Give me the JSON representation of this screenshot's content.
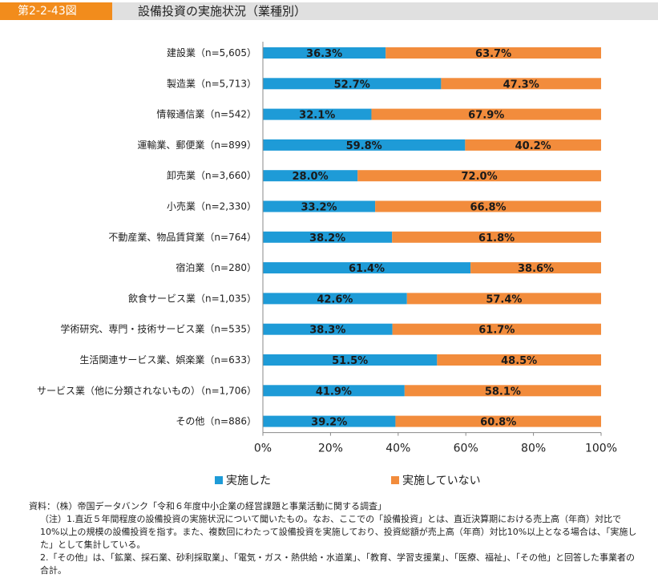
{
  "figure": {
    "label": "第2-2-43図",
    "title": "設備投資の実施状況（業種別）"
  },
  "chart_data": {
    "type": "bar",
    "orientation": "horizontal",
    "stacked": true,
    "categories": [
      "建設業（n=5,605）",
      "製造業（n=5,713）",
      "情報通信業（n=542）",
      "運輸業、郵便業（n=899）",
      "卸売業（n=3,660）",
      "小売業（n=2,330）",
      "不動産業、物品賃貸業（n=764）",
      "宿泊業（n=280）",
      "飲食サービス業（n=1,035）",
      "学術研究、専門・技術サービス業（n=535）",
      "生活関連サービス業、娯楽業（n=633）",
      "サービス業（他に分類されないもの）（n=1,706）",
      "その他（n=886）"
    ],
    "series": [
      {
        "name": "実施した",
        "color": "#1e9bd7",
        "values": [
          36.3,
          52.7,
          32.1,
          59.8,
          28.0,
          33.2,
          38.2,
          61.4,
          42.6,
          38.3,
          51.5,
          41.9,
          39.2
        ],
        "labels": [
          "36.3%",
          "52.7%",
          "32.1%",
          "59.8%",
          "28.0%",
          "33.2%",
          "38.2%",
          "61.4%",
          "42.6%",
          "38.3%",
          "51.5%",
          "41.9%",
          "39.2%"
        ]
      },
      {
        "name": "実施していない",
        "color": "#f28c3c",
        "values": [
          63.7,
          47.3,
          67.9,
          40.2,
          72.0,
          66.8,
          61.8,
          38.6,
          57.4,
          61.7,
          48.5,
          58.1,
          60.8
        ],
        "labels": [
          "63.7%",
          "47.3%",
          "67.9%",
          "40.2%",
          "72.0%",
          "66.8%",
          "61.8%",
          "38.6%",
          "57.4%",
          "61.7%",
          "48.5%",
          "58.1%",
          "60.8%"
        ]
      }
    ],
    "xlim": [
      0,
      100
    ],
    "xticks": [
      "0%",
      "20%",
      "40%",
      "60%",
      "80%",
      "100%"
    ],
    "grid": false,
    "legend_position": "bottom"
  },
  "notes": [
    "資料：（株）帝国データバンク「令和６年度中小企業の経営課題と事業活動に関する調査」",
    "（注）1.直近５年間程度の設備投資の実施状況について聞いたもの。なお、ここでの「設備投資」とは、直近決算期における売上高（年商）対比で10%以上の規模の設備投資を指す。また、複数回にわたって設備投資を実施しており、投資総額が売上高（年商）対比10%以上となる場合は、「実施した」として集計している。",
    "2.「その他」は、「鉱業、採石業、砂利採取業」、「電気・ガス・熱供給・水道業」、「教育、学習支援業」、「医療、福祉」、「その他」と回答した事業者の合計。"
  ]
}
